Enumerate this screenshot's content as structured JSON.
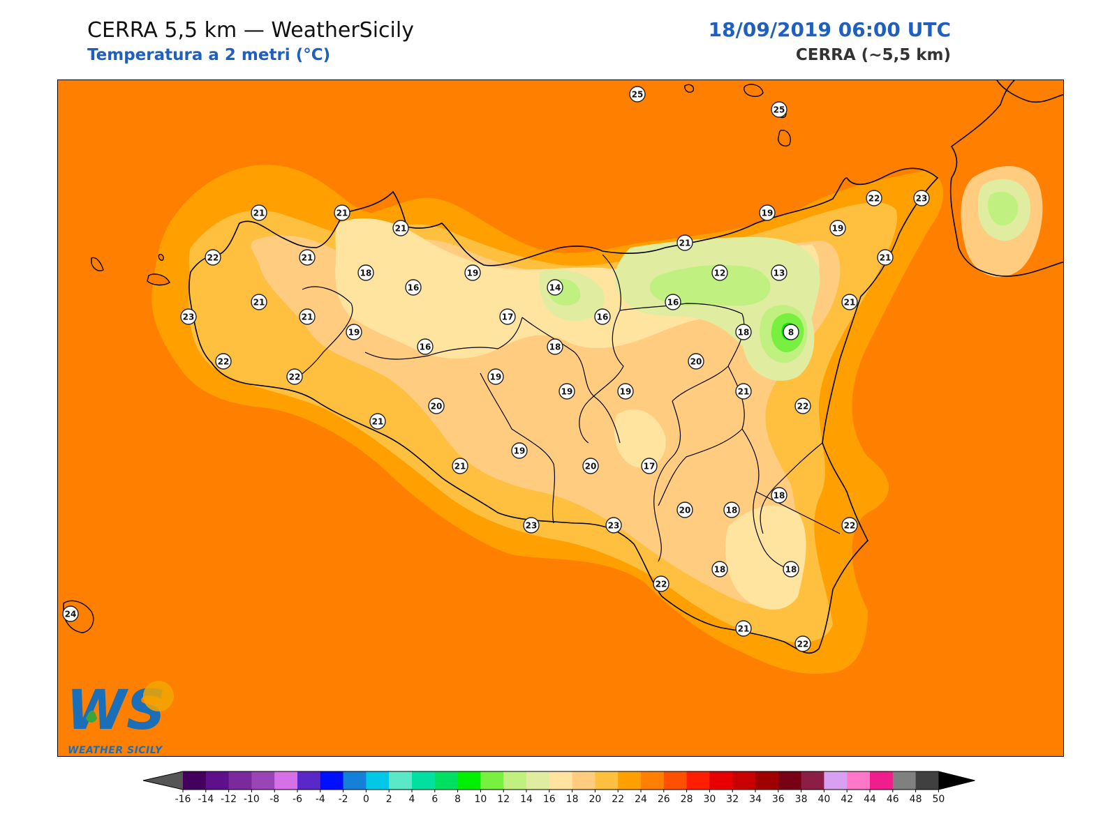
{
  "header": {
    "title_left": "CERRA 5,5 km — WeatherSicily",
    "subtitle_left": "Temperatura a 2 metri (°C)",
    "title_right": "18/09/2019 06:00 UTC",
    "subtitle_right": "CERRA (~5,5 km)"
  },
  "logo": {
    "text": "WEATHER SICILY",
    "mark": "WS",
    "icon": "ws-logo-icon"
  },
  "colorbar": {
    "ticks": [
      "-16",
      "-14",
      "-12",
      "-10",
      "-8",
      "-6",
      "-4",
      "-2",
      "0",
      "2",
      "4",
      "6",
      "8",
      "10",
      "12",
      "14",
      "16",
      "18",
      "20",
      "22",
      "24",
      "26",
      "28",
      "30",
      "32",
      "34",
      "36",
      "38",
      "40",
      "42",
      "44",
      "46",
      "48",
      "50"
    ],
    "colors": [
      "#43005c",
      "#5e0f8a",
      "#7b2a9e",
      "#9a45b5",
      "#d670e6",
      "#5a28c8",
      "#0010ff",
      "#1480d8",
      "#00c8e6",
      "#5ae8c8",
      "#00e0a0",
      "#00e060",
      "#00f000",
      "#78f040",
      "#c0f080",
      "#e0eca0",
      "#ffe4a0",
      "#ffcc80",
      "#ffc040",
      "#ffa000",
      "#ff8000",
      "#ff5000",
      "#ff1e00",
      "#e60000",
      "#c80000",
      "#a00000",
      "#780014",
      "#8c1e46",
      "#d8a0f0",
      "#ff78c8",
      "#f01e8c",
      "#808080",
      "#404040"
    ],
    "under_color": "#555555",
    "over_color": "#000000"
  },
  "stations": [
    {
      "v": "25"
    },
    {
      "v": "25"
    },
    {
      "v": "21"
    },
    {
      "v": "21"
    },
    {
      "v": "21"
    },
    {
      "v": "22"
    },
    {
      "v": "21"
    },
    {
      "v": "18"
    },
    {
      "v": "16"
    },
    {
      "v": "19"
    },
    {
      "v": "19"
    },
    {
      "v": "21"
    },
    {
      "v": "22"
    },
    {
      "v": "23"
    },
    {
      "v": "19"
    },
    {
      "v": "21"
    },
    {
      "v": "12"
    },
    {
      "v": "13"
    },
    {
      "v": "14"
    },
    {
      "v": "21"
    },
    {
      "v": "21"
    },
    {
      "v": "23"
    },
    {
      "v": "21"
    },
    {
      "v": "19"
    },
    {
      "v": "16"
    },
    {
      "v": "17"
    },
    {
      "v": "16"
    },
    {
      "v": "16"
    },
    {
      "v": "18"
    },
    {
      "v": "8"
    },
    {
      "v": "18"
    },
    {
      "v": "22"
    },
    {
      "v": "22"
    },
    {
      "v": "20"
    },
    {
      "v": "19"
    },
    {
      "v": "19"
    },
    {
      "v": "21"
    },
    {
      "v": "22"
    },
    {
      "v": "20"
    },
    {
      "v": "19"
    },
    {
      "v": "21"
    },
    {
      "v": "21"
    },
    {
      "v": "19"
    },
    {
      "v": "20"
    },
    {
      "v": "17"
    },
    {
      "v": "18"
    },
    {
      "v": "23"
    },
    {
      "v": "23"
    },
    {
      "v": "20"
    },
    {
      "v": "18"
    },
    {
      "v": "22"
    },
    {
      "v": "22"
    },
    {
      "v": "18"
    },
    {
      "v": "18"
    },
    {
      "v": "21"
    },
    {
      "v": "22"
    },
    {
      "v": "24"
    }
  ]
}
